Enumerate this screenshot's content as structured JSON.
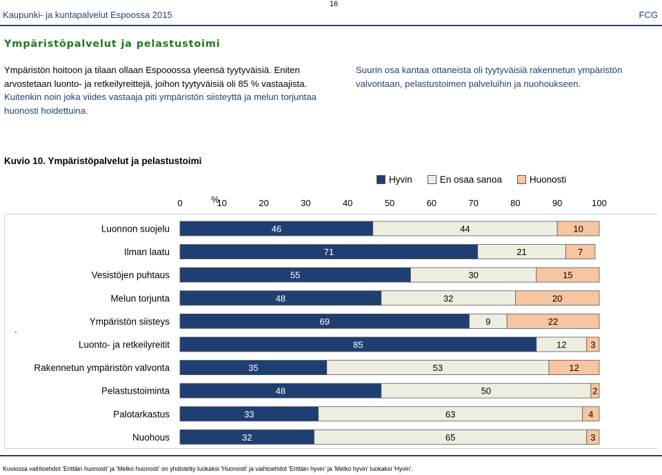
{
  "header": {
    "left_title": "Kaupunki- ja kuntapalvelut Espoossa 2015",
    "page_number": "16",
    "right_label": "FCG"
  },
  "section_title": "Ympäristöpalvelut ja pelastustoimi",
  "paragraph_left_a": "Ympäristön hoitoon ja tilaan ollaan Espooossa yleensä tyytyväisiä. Eniten arvostetaan luonto- ja retkeilyreittejä, joihon tyytyväisiä oli 85 % vastaajista.",
  "paragraph_left_b": " Kuitenkin noin joka viides vastaaja piti ympäristön siisteyttä ja melun torjuntaa huonosti hoidettuina.",
  "paragraph_right": "Suurin osa kantaa ottaneista oli tyytyväisiä rakennetun ympäristön valvontaan, pelastustoimen palveluihin ja nuohoukseen.",
  "figure_title": "Kuvio 10. Ympäristöpalvelut ja pelastustoimi",
  "stray_mark": ".",
  "colors": {
    "brand": "#1f3f72",
    "hyvin": "#1f3f72",
    "en_osaa": "#eeeee0",
    "huonosti": "#f7c5a0",
    "section_title": "#1f7a1f"
  },
  "chart_data": {
    "type": "bar",
    "orientation": "horizontal-stacked-100",
    "unit_label": "%",
    "xlim": [
      0,
      100
    ],
    "x_ticks": [
      "0",
      "10",
      "20",
      "30",
      "40",
      "50",
      "60",
      "70",
      "80",
      "90",
      "100"
    ],
    "legend": [
      "Hyvin",
      "En osaa sanoa",
      "Huonosti"
    ],
    "legend_position": "top-right",
    "categories": [
      "Luonnon suojelu",
      "Ilman laatu",
      "Vesistöjen puhtaus",
      "Melun torjunta",
      "Ympäristön siisteys",
      "Luonto- ja retkeilyreitit",
      "Rakennetun ympäristön valvonta",
      "Pelastustoiminta",
      "Palotarkastus",
      "Nuohous"
    ],
    "series": [
      {
        "name": "Hyvin",
        "values": [
          46,
          71,
          55,
          48,
          69,
          85,
          35,
          48,
          33,
          32
        ]
      },
      {
        "name": "En osaa sanoa",
        "values": [
          44,
          21,
          30,
          32,
          9,
          12,
          53,
          50,
          63,
          65
        ]
      },
      {
        "name": "Huonosti",
        "values": [
          10,
          7,
          15,
          20,
          22,
          3,
          12,
          2,
          4,
          3
        ]
      }
    ]
  },
  "footnote": "Kuviossa vaihtoehdot 'Erittäin huonosti' ja 'Melko huonosti' on yhdistetty luokaksi 'Huonosti' ja vaihtoehdot 'Erittäin hyvin' ja 'Melko hyvin' luokaksi 'Hyvin'."
}
